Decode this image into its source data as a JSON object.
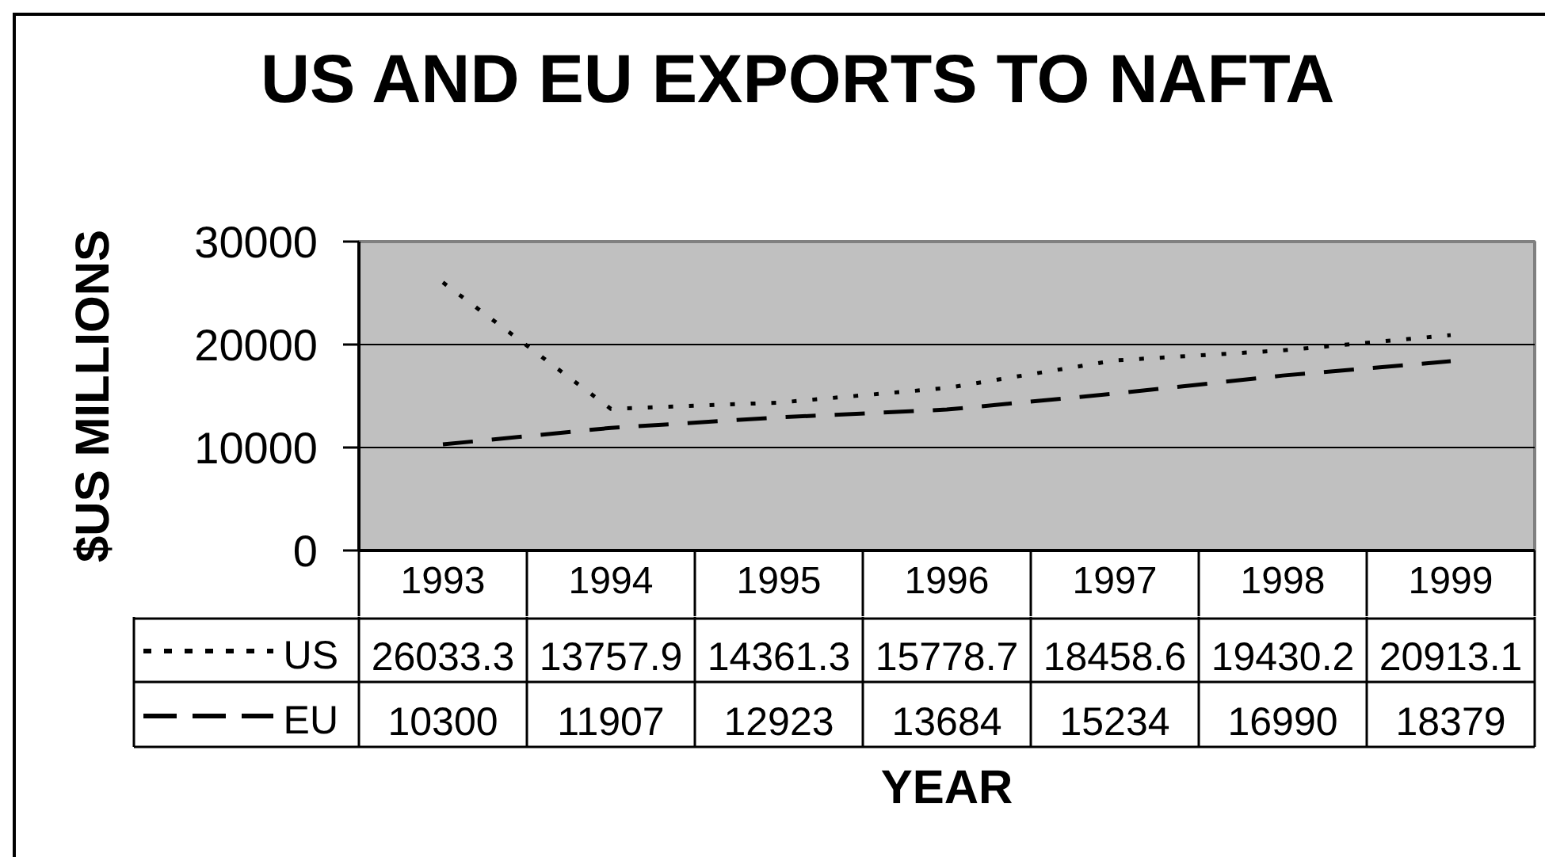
{
  "chart_data": {
    "type": "line",
    "title": "US AND EU EXPORTS TO NAFTA",
    "xlabel": "YEAR",
    "ylabel": "$US MILLIONS",
    "categories": [
      "1993",
      "1994",
      "1995",
      "1996",
      "1997",
      "1998",
      "1999"
    ],
    "series": [
      {
        "name": "US",
        "color": "#000000",
        "line_style": "dotted",
        "values": [
          26033.3,
          13757.9,
          14361.3,
          15778.7,
          18458.6,
          19430.2,
          20913.1
        ]
      },
      {
        "name": "EU",
        "color": "#000000",
        "line_style": "dashed",
        "values": [
          10300,
          11907,
          12923,
          13684,
          15234,
          16990,
          18379
        ]
      }
    ],
    "ylim": [
      0,
      30000
    ],
    "yticks": [
      0,
      10000,
      20000,
      30000
    ],
    "grid": "y",
    "legend": "bottom left",
    "data_labels": true
  }
}
